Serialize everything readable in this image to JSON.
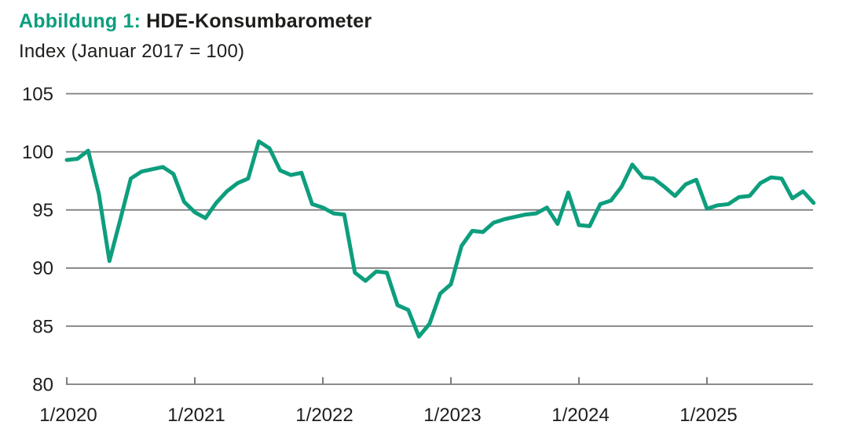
{
  "header": {
    "figure_label": "Abbildung 1:",
    "title": "HDE-Konsumbarometer",
    "subtitle": "Index (Januar 2017 = 100)"
  },
  "colors": {
    "accent": "#0d9e7d",
    "line": "#0d9e7d",
    "grid": "#7c7c7c",
    "axis": "#7c7c7c",
    "text": "#1d1d1b"
  },
  "chart_data": {
    "type": "line",
    "title": "HDE-Konsumbarometer",
    "subtitle": "Index (Januar 2017 = 100)",
    "legend": "none",
    "grid": "horizontal",
    "ylim": [
      80,
      105
    ],
    "y_ticks": [
      105,
      100,
      95,
      90,
      85,
      80
    ],
    "x_tick_labels": [
      "1/2020",
      "1/2021",
      "1/2022",
      "1/2023",
      "1/2024",
      "1/2025"
    ],
    "x_months": [
      "1/2020",
      "2/2020",
      "3/2020",
      "4/2020",
      "5/2020",
      "6/2020",
      "7/2020",
      "8/2020",
      "9/2020",
      "10/2020",
      "11/2020",
      "12/2020",
      "1/2021",
      "2/2021",
      "3/2021",
      "4/2021",
      "5/2021",
      "6/2021",
      "7/2021",
      "8/2021",
      "9/2021",
      "10/2021",
      "11/2021",
      "12/2021",
      "1/2022",
      "2/2022",
      "3/2022",
      "4/2022",
      "5/2022",
      "6/2022",
      "7/2022",
      "8/2022",
      "9/2022",
      "10/2022",
      "11/2022",
      "12/2022",
      "1/2023",
      "2/2023",
      "3/2023",
      "4/2023",
      "5/2023",
      "6/2023",
      "7/2023",
      "8/2023",
      "9/2023",
      "10/2023",
      "11/2023",
      "12/2023",
      "1/2024",
      "2/2024",
      "3/2024",
      "4/2024",
      "5/2024",
      "6/2024",
      "7/2024",
      "8/2024",
      "9/2024",
      "10/2024",
      "11/2024",
      "12/2024",
      "1/2025",
      "2/2025",
      "3/2025",
      "4/2025",
      "5/2025",
      "6/2025",
      "7/2025",
      "8/2025",
      "9/2025",
      "10/2025",
      "11/2025"
    ],
    "series": [
      {
        "name": "HDE-Konsumbarometer",
        "values": [
          99.3,
          99.4,
          100.1,
          96.4,
          90.6,
          94.1,
          97.7,
          98.3,
          98.5,
          98.7,
          98.1,
          95.7,
          94.8,
          94.3,
          95.6,
          96.6,
          97.3,
          97.7,
          100.9,
          100.3,
          98.4,
          98.0,
          98.2,
          95.5,
          95.2,
          94.7,
          94.6,
          89.6,
          88.9,
          89.7,
          89.6,
          86.8,
          86.4,
          84.1,
          85.2,
          87.8,
          88.6,
          91.9,
          93.2,
          93.1,
          93.9,
          94.2,
          94.4,
          94.6,
          94.7,
          95.2,
          93.8,
          96.5,
          93.7,
          93.6,
          95.5,
          95.8,
          97.0,
          98.9,
          97.8,
          97.7,
          97.0,
          96.2,
          97.2,
          97.6,
          95.1,
          95.4,
          95.5,
          96.1,
          96.2,
          97.3,
          97.8,
          97.7,
          96.0,
          96.6,
          95.6
        ]
      }
    ]
  }
}
